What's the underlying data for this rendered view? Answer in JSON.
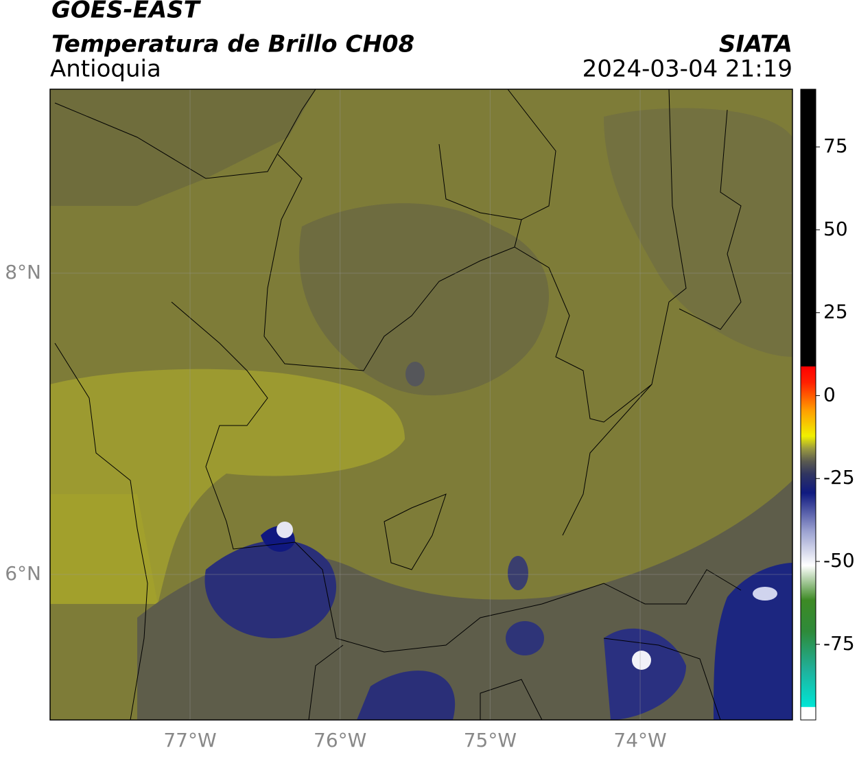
{
  "header": {
    "title": "GOES-EAST",
    "subtitle": "Temperatura de Brillo CH08",
    "region": "Antioquia",
    "source": "SIATA",
    "datetime": "2024-03-04 21:19"
  },
  "map": {
    "xlim": [
      -77.933,
      -72.985
    ],
    "ylim": [
      5.034,
      9.221
    ],
    "xticks": [
      {
        "value": -77,
        "label": "77°W"
      },
      {
        "value": -76,
        "label": "76°W"
      },
      {
        "value": -75,
        "label": "75°W"
      },
      {
        "value": -74,
        "label": "74°W"
      }
    ],
    "yticks": [
      {
        "value": 8,
        "label": "8°N"
      },
      {
        "value": 6,
        "label": "6°N"
      }
    ]
  },
  "colorbar": {
    "lim": [
      -97.8,
      92.4
    ],
    "ticks": [
      75,
      50,
      25,
      0,
      -25,
      -50,
      -75
    ]
  }
}
